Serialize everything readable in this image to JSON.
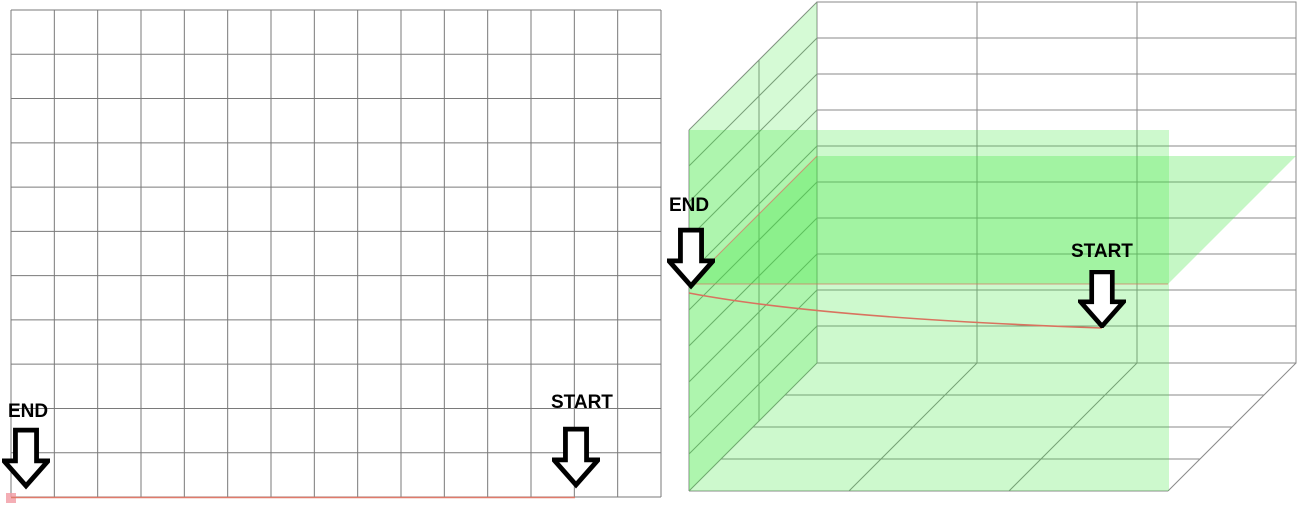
{
  "left_panel": {
    "end_label": "END",
    "start_label": "START",
    "grid_columns": 15,
    "grid_rows": 11,
    "grid_color": "#7a7a7a",
    "path_color": "#e07a6a",
    "marker_color": "#f2a0a8"
  },
  "right_panel": {
    "end_label": "END",
    "start_label": "START",
    "plane_fill": "#3ee63e",
    "grid_color": "#8a8a8a",
    "path_color": "#d9735f"
  },
  "arrow_icon": "down-arrow-outline-icon"
}
